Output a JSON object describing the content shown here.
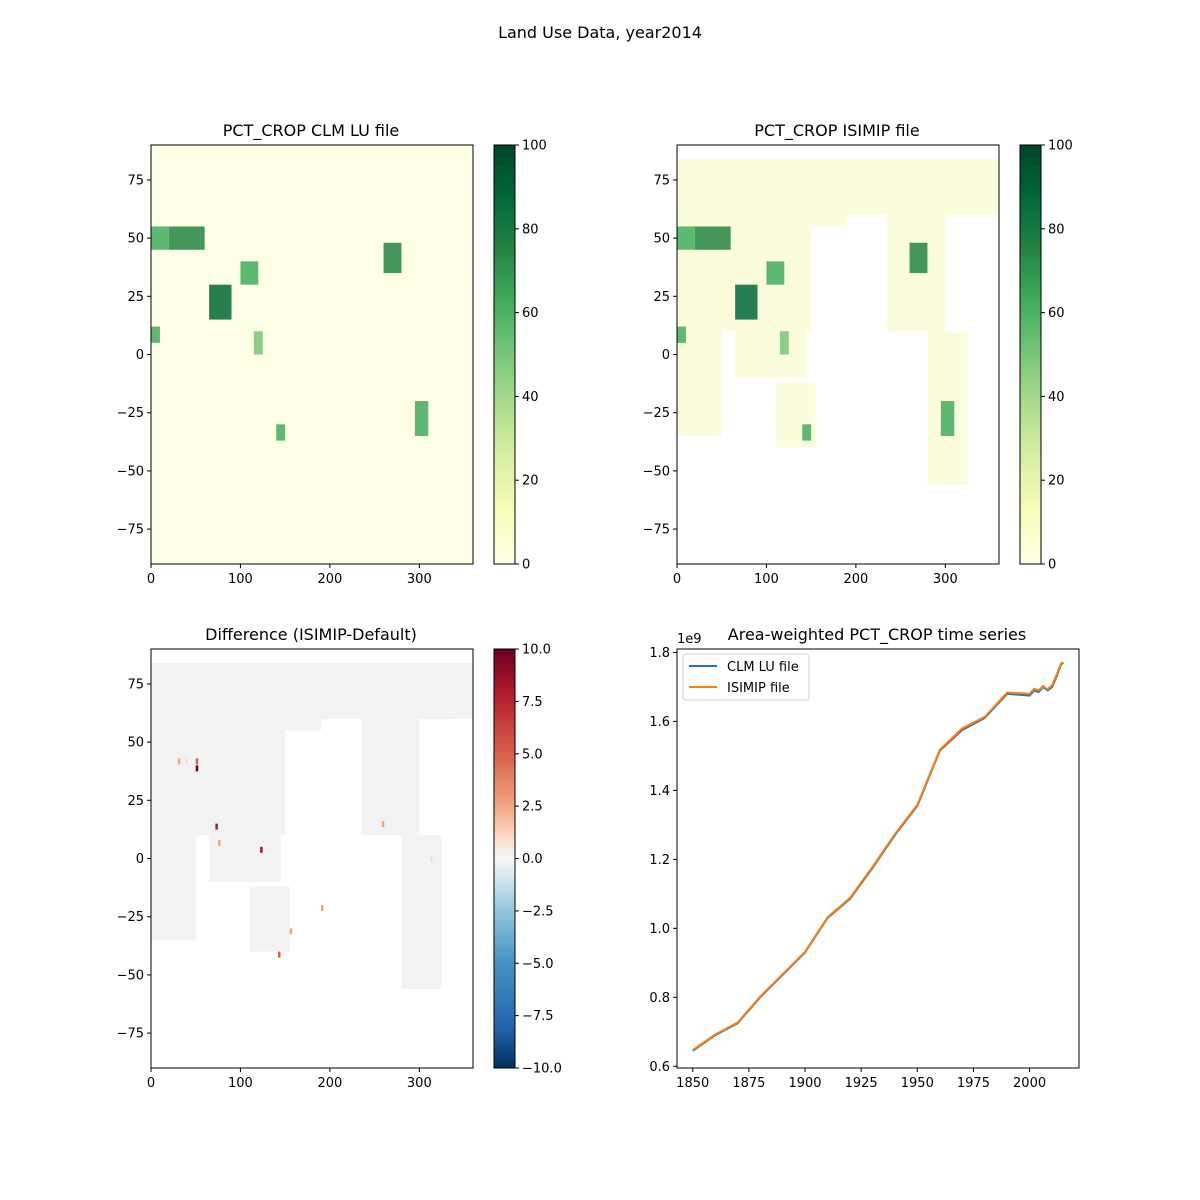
{
  "figure": {
    "title": "Land Use Data, year2014"
  },
  "colors": {
    "greens_low": "#ffffe5",
    "greens_high": "#004529",
    "rdbu_low": "#053061",
    "rdbu_mid": "#f7f7f7",
    "rdbu_high": "#67001f",
    "clm_line": "#1f77b4",
    "isimip_line": "#ff7f0e",
    "land_gray": "#f2f2f2"
  },
  "chart_data": [
    {
      "type": "heatmap",
      "title": "PCT_CROP CLM LU file",
      "colormap": "Greens",
      "xlim": [
        0,
        360
      ],
      "ylim": [
        -90,
        90
      ],
      "xticks": [
        "0",
        "100",
        "200",
        "300"
      ],
      "yticks": [
        "75",
        "50",
        "25",
        "0",
        "−25",
        "−50",
        "−75"
      ],
      "colorbar": {
        "range": [
          0,
          100
        ],
        "ticks": [
          "100",
          "80",
          "60",
          "40",
          "20",
          "0"
        ]
      }
    },
    {
      "type": "heatmap",
      "title": "PCT_CROP ISIMIP file",
      "colormap": "Greens",
      "xlim": [
        0,
        360
      ],
      "ylim": [
        -90,
        90
      ],
      "xticks": [
        "0",
        "100",
        "200",
        "300"
      ],
      "yticks": [
        "75",
        "50",
        "25",
        "0",
        "−25",
        "−50",
        "−75"
      ],
      "colorbar": {
        "range": [
          0,
          100
        ],
        "ticks": [
          "100",
          "80",
          "60",
          "40",
          "20",
          "0"
        ]
      }
    },
    {
      "type": "heatmap",
      "title": "Difference (ISIMIP-Default)",
      "colormap": "RdBu_r",
      "xlim": [
        0,
        360
      ],
      "ylim": [
        -90,
        90
      ],
      "xticks": [
        "0",
        "100",
        "200",
        "300"
      ],
      "yticks": [
        "75",
        "50",
        "25",
        "0",
        "−25",
        "−50",
        "−75"
      ],
      "colorbar": {
        "range": [
          -10,
          10
        ],
        "ticks": [
          "10.0",
          "7.5",
          "5.0",
          "2.5",
          "0.0",
          "−2.5",
          "−5.0",
          "−7.5",
          "−10.0"
        ]
      }
    },
    {
      "type": "line",
      "title": "Area-weighted PCT_CROP time series",
      "offset_label": "1e9",
      "xlim": [
        1843,
        2022
      ],
      "ylim": [
        0.595,
        1.81
      ],
      "xticks": [
        "1850",
        "1875",
        "1900",
        "1925",
        "1950",
        "1975",
        "2000"
      ],
      "yticks": [
        "1.8",
        "1.6",
        "1.4",
        "1.2",
        "1.0",
        "0.8",
        "0.6"
      ],
      "legend_position": "upper left",
      "series": [
        {
          "name": "CLM LU file",
          "x": [
            1850,
            1860,
            1870,
            1880,
            1890,
            1900,
            1910,
            1920,
            1930,
            1940,
            1950,
            1960,
            1970,
            1980,
            1990,
            2000,
            2002,
            2004,
            2006,
            2008,
            2010,
            2012,
            2014,
            2015
          ],
          "y": [
            0.645,
            0.69,
            0.725,
            0.8,
            0.865,
            0.93,
            1.03,
            1.085,
            1.175,
            1.27,
            1.355,
            1.515,
            1.575,
            1.61,
            1.68,
            1.675,
            1.69,
            1.685,
            1.7,
            1.69,
            1.7,
            1.73,
            1.765,
            1.77
          ]
        },
        {
          "name": "ISIMIP file",
          "x": [
            1850,
            1860,
            1870,
            1880,
            1890,
            1900,
            1910,
            1920,
            1930,
            1940,
            1950,
            1960,
            1970,
            1980,
            1990,
            2000,
            2002,
            2004,
            2006,
            2008,
            2010,
            2012,
            2014,
            2015
          ],
          "y": [
            0.647,
            0.692,
            0.727,
            0.802,
            0.867,
            0.932,
            1.032,
            1.088,
            1.178,
            1.273,
            1.358,
            1.518,
            1.58,
            1.613,
            1.684,
            1.68,
            1.695,
            1.69,
            1.703,
            1.693,
            1.705,
            1.735,
            1.768,
            1.772
          ]
        }
      ]
    }
  ]
}
